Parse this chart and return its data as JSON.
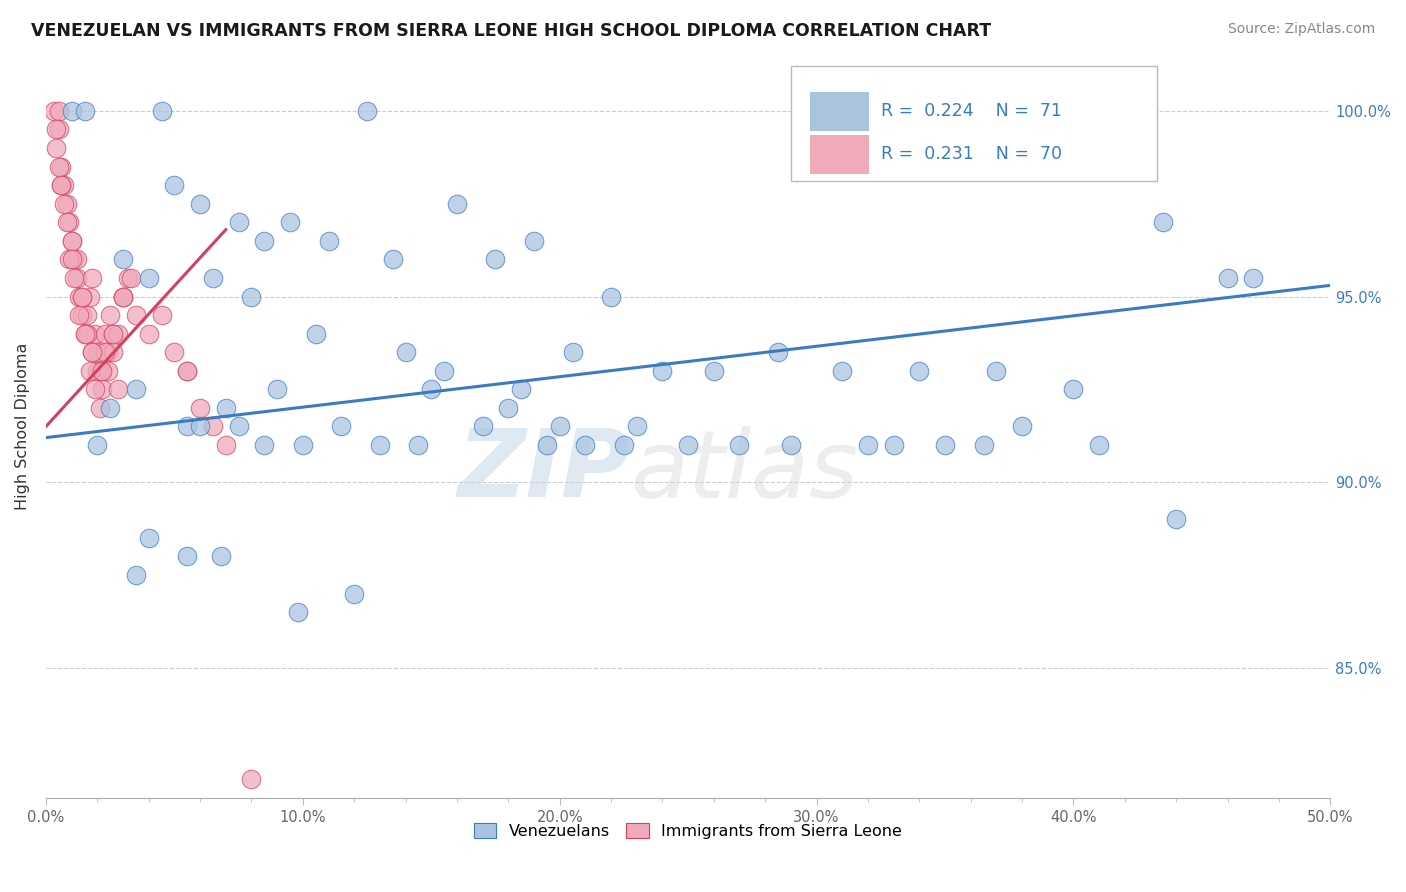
{
  "title": "VENEZUELAN VS IMMIGRANTS FROM SIERRA LEONE HIGH SCHOOL DIPLOMA CORRELATION CHART",
  "source": "Source: ZipAtlas.com",
  "ylabel": "High School Diploma",
  "legend_blue_r": "0.224",
  "legend_blue_n": "71",
  "legend_pink_r": "0.231",
  "legend_pink_n": "70",
  "legend_label_blue": "Venezuelans",
  "legend_label_pink": "Immigrants from Sierra Leone",
  "blue_color": "#aac4e0",
  "blue_line_color": "#3a7cc4",
  "pink_color": "#f0aaba",
  "pink_line_color": "#d44060",
  "watermark_zip": "ZIP",
  "watermark_atlas": "atlas",
  "blue_scatter_x": [
    1.0,
    1.5,
    4.5,
    12.5,
    5.0,
    6.0,
    7.5,
    8.5,
    9.5,
    11.0,
    13.5,
    16.0,
    17.5,
    19.0,
    20.5,
    22.0,
    24.0,
    26.0,
    28.5,
    31.0,
    34.0,
    37.0,
    40.0,
    43.5,
    46.0,
    3.0,
    4.0,
    6.5,
    8.0,
    10.5,
    14.0,
    7.0,
    5.5,
    9.0,
    2.5,
    3.5,
    15.0,
    18.0,
    2.0,
    6.0,
    7.5,
    8.5,
    10.0,
    11.5,
    13.0,
    14.5,
    17.0,
    19.5,
    21.0,
    23.0,
    25.0,
    27.0,
    29.0,
    32.0,
    35.0,
    38.0,
    41.0,
    44.0,
    4.0,
    5.5,
    3.5,
    6.8,
    9.8,
    12.0,
    20.0,
    22.5,
    33.0,
    36.5,
    15.5,
    18.5,
    47.0
  ],
  "blue_scatter_y": [
    100.0,
    100.0,
    100.0,
    100.0,
    98.0,
    97.5,
    97.0,
    96.5,
    97.0,
    96.5,
    96.0,
    97.5,
    96.0,
    96.5,
    93.5,
    95.0,
    93.0,
    93.0,
    93.5,
    93.0,
    93.0,
    93.0,
    92.5,
    97.0,
    95.5,
    96.0,
    95.5,
    95.5,
    95.0,
    94.0,
    93.5,
    92.0,
    91.5,
    92.5,
    92.0,
    92.5,
    92.5,
    92.0,
    91.0,
    91.5,
    91.5,
    91.0,
    91.0,
    91.5,
    91.0,
    91.0,
    91.5,
    91.0,
    91.0,
    91.5,
    91.0,
    91.0,
    91.0,
    91.0,
    91.0,
    91.5,
    91.0,
    89.0,
    88.5,
    88.0,
    87.5,
    88.0,
    86.5,
    87.0,
    91.5,
    91.0,
    91.0,
    91.0,
    93.0,
    92.5,
    95.5
  ],
  "pink_scatter_x": [
    0.3,
    0.5,
    0.5,
    0.6,
    0.7,
    0.8,
    0.9,
    1.0,
    1.1,
    1.2,
    1.3,
    1.4,
    1.5,
    1.6,
    1.7,
    1.8,
    1.9,
    2.0,
    2.1,
    2.2,
    2.3,
    2.4,
    2.5,
    2.6,
    2.8,
    3.0,
    3.2,
    3.5,
    4.0,
    4.5,
    5.0,
    5.5,
    6.0,
    6.5,
    7.0,
    0.4,
    0.6,
    0.8,
    1.0,
    1.2,
    1.4,
    1.6,
    1.8,
    2.0,
    2.2,
    2.4,
    2.6,
    2.8,
    3.0,
    3.3,
    0.5,
    0.7,
    0.9,
    1.1,
    1.3,
    1.5,
    1.7,
    1.9,
    2.1,
    2.3,
    0.4,
    0.6,
    1.0,
    1.4,
    1.8,
    2.2,
    2.6,
    3.0,
    5.5,
    8.0
  ],
  "pink_scatter_y": [
    100.0,
    100.0,
    99.5,
    98.5,
    98.0,
    97.5,
    97.0,
    96.5,
    96.0,
    95.5,
    95.0,
    94.5,
    94.0,
    94.5,
    95.0,
    95.5,
    94.0,
    93.5,
    93.0,
    93.0,
    94.0,
    93.5,
    94.5,
    94.0,
    94.0,
    95.0,
    95.5,
    94.5,
    94.0,
    94.5,
    93.5,
    93.0,
    92.0,
    91.5,
    91.0,
    99.0,
    98.0,
    97.0,
    96.5,
    96.0,
    95.0,
    94.0,
    93.5,
    93.0,
    92.5,
    93.0,
    93.5,
    92.5,
    95.0,
    95.5,
    98.5,
    97.5,
    96.0,
    95.5,
    94.5,
    94.0,
    93.0,
    92.5,
    92.0,
    93.5,
    99.5,
    98.0,
    96.0,
    95.0,
    93.5,
    93.0,
    94.0,
    95.0,
    93.0,
    82.0
  ],
  "xmin": 0.0,
  "xmax": 50.0,
  "ymin": 81.5,
  "ymax": 101.5,
  "yticks": [
    85.0,
    90.0,
    95.0,
    100.0
  ],
  "xticks": [
    0,
    10,
    20,
    30,
    40,
    50
  ],
  "blue_trend_x0": 0.0,
  "blue_trend_x1": 50.0,
  "blue_trend_y0": 91.2,
  "blue_trend_y1": 95.3,
  "pink_trend_x0": 0.0,
  "pink_trend_x1": 7.0,
  "pink_trend_y0": 91.5,
  "pink_trend_y1": 96.8
}
